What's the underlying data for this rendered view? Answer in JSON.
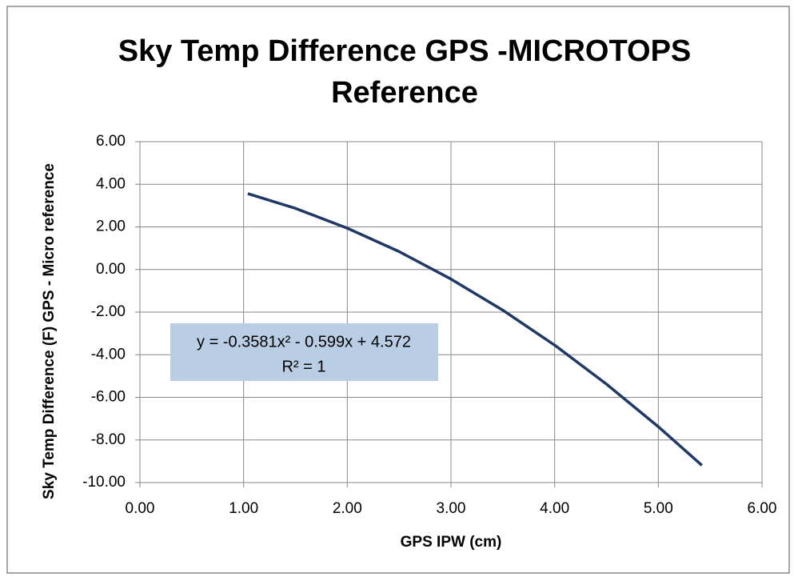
{
  "chart_data": {
    "type": "line",
    "title": [
      "Sky Temp Difference GPS -MICROTOPS",
      "Reference"
    ],
    "x_label": "GPS IPW (cm)",
    "y_label": "Sky Temp Difference (F) GPS - Micro reference",
    "x": [
      1.04,
      1.5,
      2.0,
      2.5,
      3.0,
      3.5,
      4.0,
      4.5,
      5.0,
      5.42
    ],
    "values": [
      3.56,
      2.87,
      1.94,
      0.84,
      -0.45,
      -1.91,
      -3.55,
      -5.38,
      -7.38,
      -9.19
    ],
    "color": "#1f3864",
    "xlim": [
      0,
      6
    ],
    "xticks": [
      {
        "value": 0,
        "label": "0.00"
      },
      {
        "value": 1,
        "label": "1.00"
      },
      {
        "value": 2,
        "label": "2.00"
      },
      {
        "value": 3,
        "label": "3.00"
      },
      {
        "value": 4,
        "label": "4.00"
      },
      {
        "value": 5,
        "label": "5.00"
      },
      {
        "value": 6,
        "label": "6.00"
      }
    ],
    "ylim": [
      -10,
      6
    ],
    "yticks": [
      {
        "value": -10,
        "label": "-10.00"
      },
      {
        "value": -8,
        "label": "-8.00"
      },
      {
        "value": -6,
        "label": "-6.00"
      },
      {
        "value": -4,
        "label": "-4.00"
      },
      {
        "value": -2,
        "label": "-2.00"
      },
      {
        "value": 0,
        "label": "0.00"
      },
      {
        "value": 2,
        "label": "2.00"
      },
      {
        "value": 4,
        "label": "4.00"
      },
      {
        "value": 6,
        "label": "6.00"
      }
    ],
    "grid": true,
    "annotations": [
      "y = -0.3581x² - 0.599x + 4.572",
      "R² = 1"
    ]
  }
}
